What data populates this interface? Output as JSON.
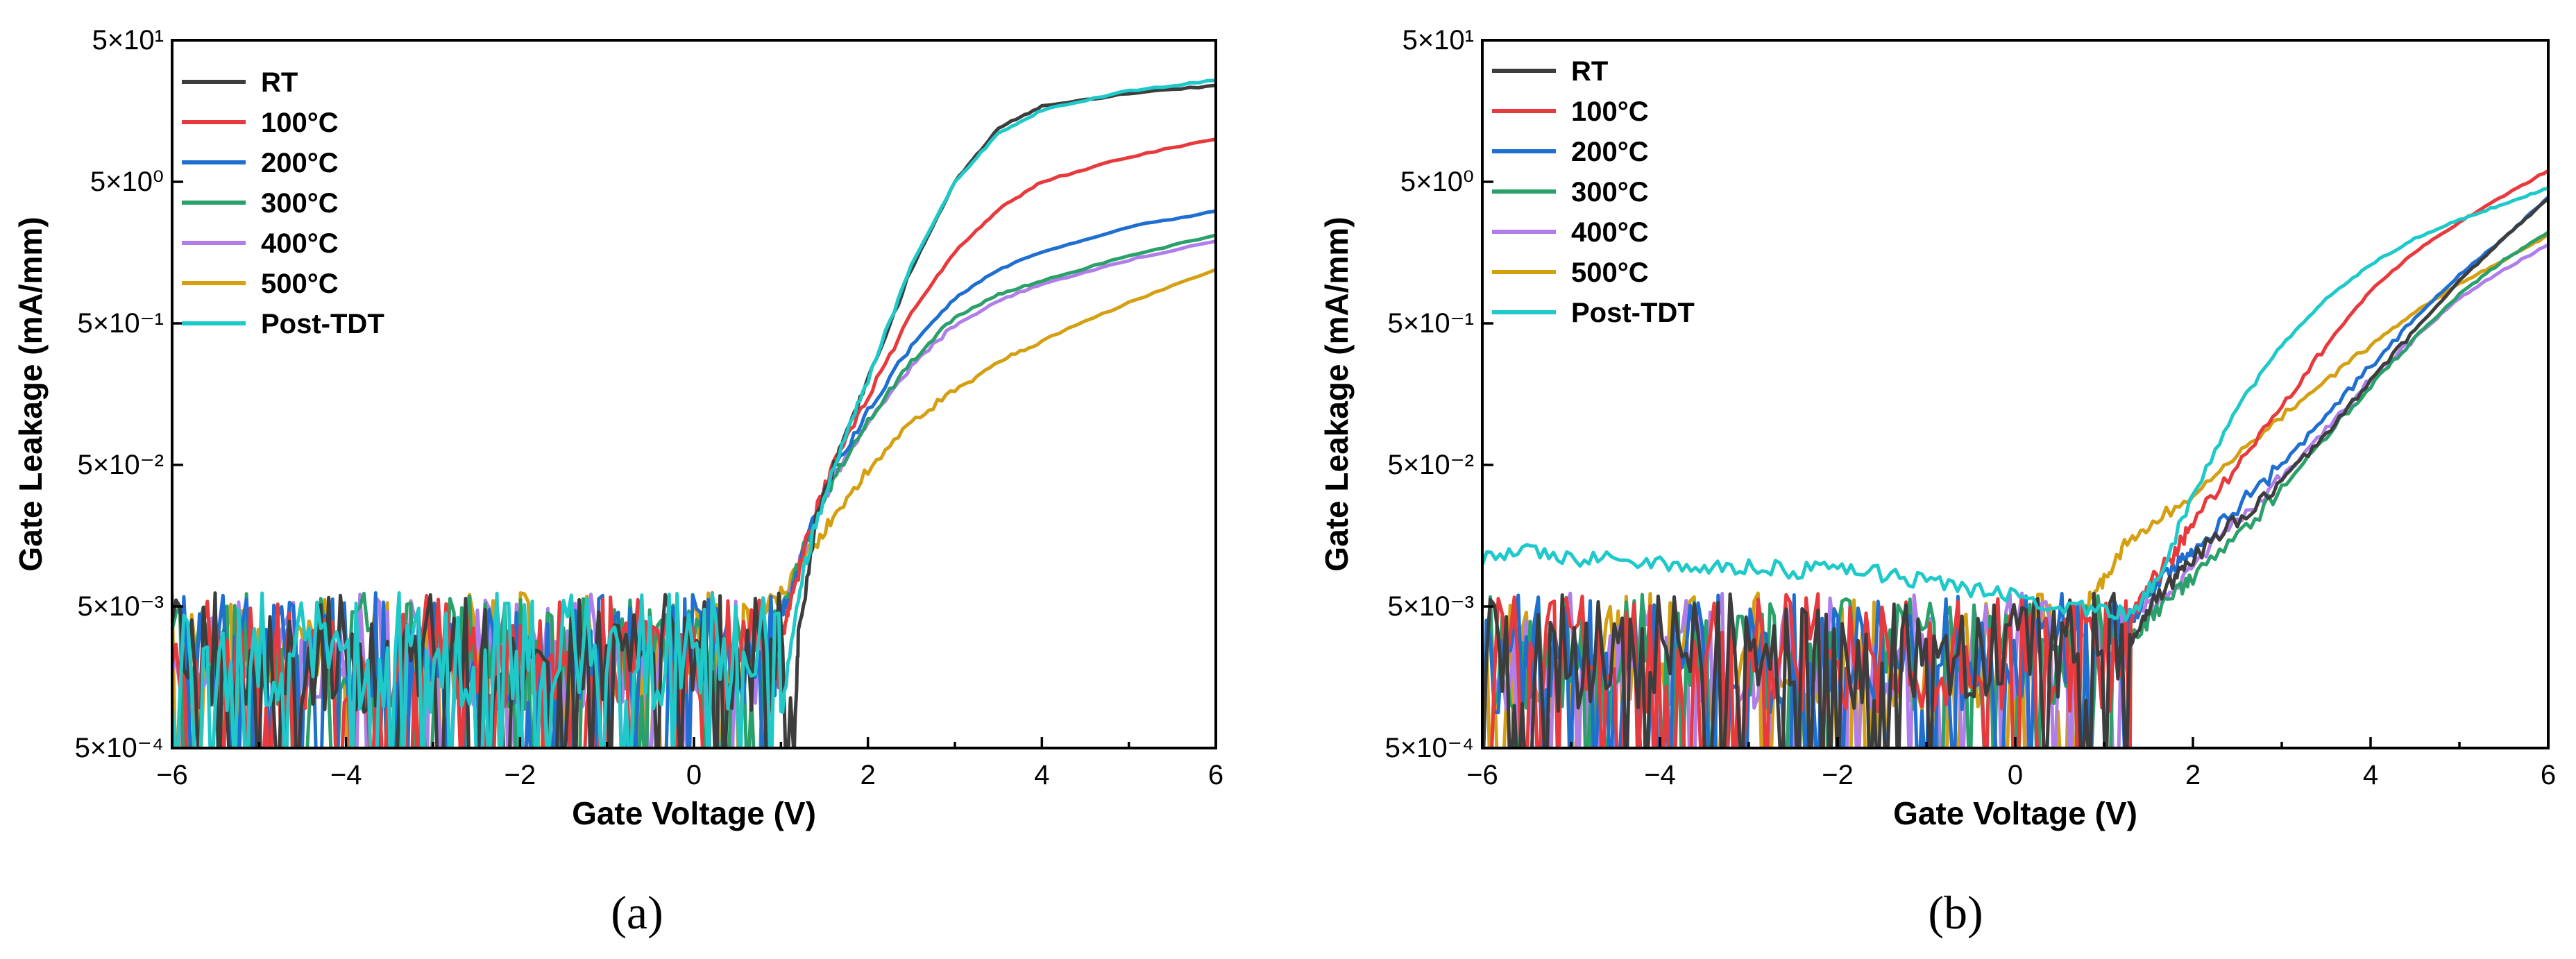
{
  "colors": {
    "RT": "#3d3d3d",
    "100C": "#e8393c",
    "200C": "#1f6fd1",
    "300C": "#2aa06a",
    "400C": "#b07ee8",
    "500C": "#d4a012",
    "PostTDT": "#1fc9c9"
  },
  "chart_data": [
    {
      "type": "line",
      "panel_label": "(a)",
      "xlabel": "Gate Voltage (V)",
      "ylabel": "Gate Leakage (mA/mm)",
      "xlim": [
        -6,
        6
      ],
      "ylim": [
        0.0005,
        50
      ],
      "yscale": "log",
      "x_ticks": [
        -6,
        -4,
        -2,
        0,
        2,
        4,
        6
      ],
      "x_tick_labels": [
        "−6",
        "−4",
        "−2",
        "0",
        "2",
        "4",
        "6"
      ],
      "y_ticks": [
        0.0005,
        0.005,
        0.05,
        0.5,
        5,
        50
      ],
      "y_tick_labels": [
        "5×10⁻⁴",
        "5×10⁻³",
        "5×10⁻²",
        "5×10⁻¹",
        "5×10⁰",
        "5×10¹"
      ],
      "legend_position": "top-left",
      "noise_region": {
        "x_start": -6,
        "x_end": 1.2,
        "y_min": 0.0005,
        "y_max": 0.007
      },
      "series": [
        {
          "name": "RT",
          "color_key": "RT",
          "x": [
            1.15,
            1.2,
            1.4,
            1.7,
            2.0,
            2.5,
            3.0,
            3.5,
            4.0,
            5.0,
            6.0
          ],
          "y": [
            0.0005,
            0.003,
            0.02,
            0.07,
            0.2,
            1.2,
            5,
            12,
            17,
            21,
            24
          ]
        },
        {
          "name": "100°C",
          "color_key": "100C",
          "x": [
            1.0,
            1.1,
            1.3,
            1.6,
            2.0,
            2.5,
            3.0,
            3.5,
            4.0,
            5.0,
            6.0
          ],
          "y": [
            0.003,
            0.005,
            0.015,
            0.05,
            0.15,
            0.6,
            1.6,
            3.2,
            5,
            7.5,
            10
          ]
        },
        {
          "name": "200°C",
          "color_key": "200C",
          "x": [
            0.95,
            1.1,
            1.3,
            1.6,
            2.0,
            2.5,
            3.0,
            3.5,
            4.0,
            5.0,
            6.0
          ],
          "y": [
            0.004,
            0.006,
            0.015,
            0.045,
            0.12,
            0.35,
            0.75,
            1.2,
            1.6,
            2.4,
            3.1
          ]
        },
        {
          "name": "300°C",
          "color_key": "300C",
          "x": [
            0.95,
            1.1,
            1.3,
            1.6,
            2.0,
            2.5,
            3.0,
            3.5,
            4.0,
            5.0,
            6.0
          ],
          "y": [
            0.004,
            0.006,
            0.015,
            0.04,
            0.1,
            0.27,
            0.55,
            0.8,
            1.0,
            1.5,
            2.1
          ]
        },
        {
          "name": "400°C",
          "color_key": "400C",
          "x": [
            0.95,
            1.1,
            1.3,
            1.6,
            2.0,
            2.5,
            3.0,
            3.5,
            4.0,
            5.0,
            6.0
          ],
          "y": [
            0.004,
            0.006,
            0.015,
            0.04,
            0.1,
            0.25,
            0.48,
            0.72,
            0.95,
            1.4,
            1.9
          ]
        },
        {
          "name": "500°C",
          "color_key": "500C",
          "x": [
            0.8,
            1.0,
            1.3,
            1.6,
            2.0,
            2.5,
            3.0,
            3.5,
            4.0,
            5.0,
            6.0
          ],
          "y": [
            0.005,
            0.006,
            0.012,
            0.02,
            0.045,
            0.1,
            0.17,
            0.26,
            0.38,
            0.7,
            1.2
          ]
        },
        {
          "name": "Post-TDT",
          "color_key": "PostTDT",
          "x": [
            1.0,
            1.2,
            1.4,
            1.7,
            2.0,
            2.5,
            3.0,
            3.5,
            4.0,
            5.0,
            6.0
          ],
          "y": [
            0.0008,
            0.006,
            0.02,
            0.07,
            0.2,
            1.3,
            5,
            11,
            16,
            22,
            26
          ]
        }
      ]
    },
    {
      "type": "line",
      "panel_label": "(b)",
      "xlabel": "Gate Voltage (V)",
      "ylabel": "Gate Leakage (mA/mm)",
      "xlim": [
        -6,
        6
      ],
      "ylim": [
        0.0005,
        50
      ],
      "yscale": "log",
      "x_ticks": [
        -6,
        -4,
        -2,
        0,
        2,
        4,
        6
      ],
      "x_tick_labels": [
        "−6",
        "−4",
        "−2",
        "0",
        "2",
        "4",
        "6"
      ],
      "y_ticks": [
        0.0005,
        0.005,
        0.05,
        0.5,
        5,
        50
      ],
      "y_tick_labels": [
        "5×10⁻⁴",
        "5×10⁻³",
        "5×10⁻²",
        "5×10⁻¹",
        "5×10⁰",
        "5×10¹"
      ],
      "legend_position": "top-left",
      "noise_region": {
        "x_start": -6,
        "x_end": 1.3,
        "y_min": 0.0005,
        "y_max": 0.007
      },
      "series": [
        {
          "name": "RT",
          "color_key": "RT",
          "x": [
            1.3,
            1.5,
            1.8,
            2.0,
            2.5,
            3.0,
            3.5,
            4.0,
            4.5,
            5.0,
            5.5,
            6.0
          ],
          "y": [
            0.003,
            0.005,
            0.008,
            0.011,
            0.02,
            0.04,
            0.08,
            0.2,
            0.45,
            1.0,
            2.0,
            3.8
          ]
        },
        {
          "name": "100°C",
          "color_key": "100C",
          "x": [
            1.3,
            1.5,
            1.8,
            2.0,
            2.5,
            3.0,
            3.5,
            4.0,
            4.5,
            5.0,
            5.5,
            6.0
          ],
          "y": [
            0.004,
            0.007,
            0.012,
            0.02,
            0.05,
            0.13,
            0.35,
            0.85,
            1.6,
            2.6,
            4.0,
            6.0
          ]
        },
        {
          "name": "200°C",
          "color_key": "200C",
          "x": [
            1.3,
            1.5,
            1.8,
            2.0,
            2.5,
            3.0,
            3.5,
            4.0,
            4.5,
            5.0,
            5.5,
            6.0
          ],
          "y": [
            0.004,
            0.006,
            0.01,
            0.013,
            0.025,
            0.05,
            0.11,
            0.25,
            0.55,
            1.1,
            2.0,
            3.9
          ]
        },
        {
          "name": "300°C",
          "color_key": "300C",
          "x": [
            1.3,
            1.5,
            1.8,
            2.0,
            2.5,
            3.0,
            3.5,
            4.0,
            4.5,
            5.0,
            5.5,
            6.0
          ],
          "y": [
            0.003,
            0.004,
            0.006,
            0.008,
            0.015,
            0.035,
            0.08,
            0.18,
            0.4,
            0.8,
            1.4,
            2.2
          ]
        },
        {
          "name": "400°C",
          "color_key": "400C",
          "x": [
            1.3,
            1.5,
            1.8,
            2.0,
            2.5,
            3.0,
            3.5,
            4.0,
            4.5,
            5.0,
            5.5,
            6.0
          ],
          "y": [
            0.004,
            0.005,
            0.007,
            0.01,
            0.02,
            0.04,
            0.09,
            0.2,
            0.4,
            0.75,
            1.2,
            1.8
          ]
        },
        {
          "name": "500°C",
          "color_key": "500C",
          "x": [
            0.8,
            1.0,
            1.2,
            1.5,
            2.0,
            2.5,
            3.0,
            3.5,
            4.0,
            4.5,
            5.0,
            5.5,
            6.0
          ],
          "y": [
            0.005,
            0.008,
            0.013,
            0.018,
            0.03,
            0.06,
            0.11,
            0.2,
            0.35,
            0.6,
            0.95,
            1.4,
            2.1
          ]
        },
        {
          "name": "Post-TDT",
          "color_key": "PostTDT",
          "x": [
            -6.0,
            -5.5,
            -5.0,
            -4.5,
            -4.0,
            -3.5,
            -3.0,
            -2.5,
            -2.0,
            -1.5,
            -1.0,
            -0.5,
            0.0,
            0.5,
            1.0,
            1.3,
            1.6,
            2.0,
            2.5,
            3.0,
            3.5,
            4.0,
            4.5,
            5.0,
            5.5,
            6.0
          ],
          "y": [
            0.011,
            0.012,
            0.011,
            0.011,
            0.01,
            0.0095,
            0.0095,
            0.009,
            0.009,
            0.0085,
            0.0075,
            0.0065,
            0.006,
            0.005,
            0.0045,
            0.0045,
            0.008,
            0.03,
            0.13,
            0.35,
            0.75,
            1.3,
            2.0,
            2.7,
            3.5,
            4.5
          ]
        }
      ]
    }
  ]
}
